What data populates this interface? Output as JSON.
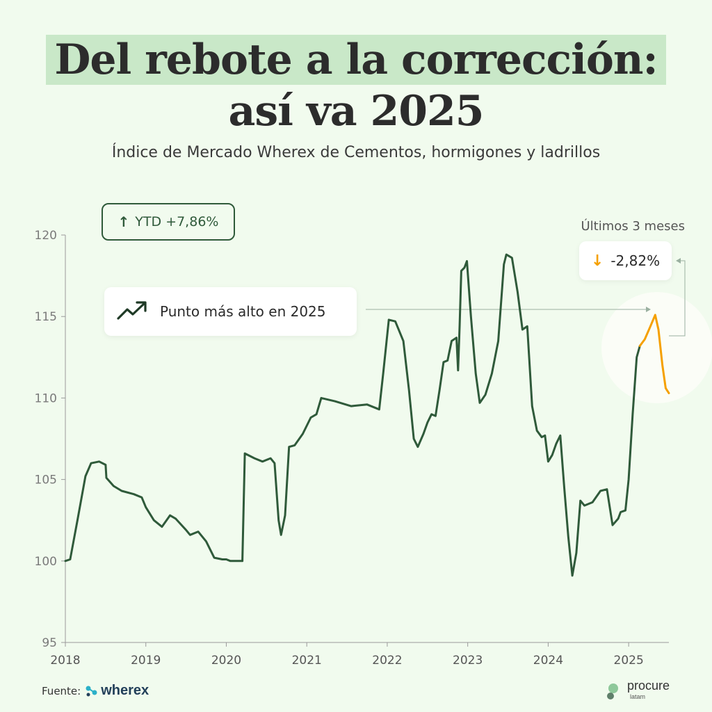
{
  "title": {
    "line1": "Del rebote a la corrección:",
    "line2": "así va 2025"
  },
  "subtitle": "Índice de Mercado Wherex de Cementos, hormigones y ladrillos",
  "ytd": {
    "arrow": "↑",
    "label": "YTD +7,86%"
  },
  "peak": {
    "label": "Punto más alto en 2025"
  },
  "last3": {
    "title": "Últimos 3 meses",
    "arrow": "↓",
    "value": "-2,82%"
  },
  "source": {
    "label": "Fuente:",
    "brand": "wherex"
  },
  "publisher": {
    "brand": "procure",
    "sub": "latam"
  },
  "colors": {
    "main_line": "#2f5a3a",
    "recent_line": "#f5a000",
    "axis": "#9a9a9a",
    "highlight": "#c9e8c8"
  },
  "chart_data": {
    "type": "line",
    "xlim": [
      2018,
      2025.5
    ],
    "ylim": [
      95,
      120
    ],
    "x_ticks": [
      2018,
      2019,
      2020,
      2021,
      2022,
      2023,
      2024,
      2025
    ],
    "x_tick_labels": [
      "2018",
      "2019",
      "2020",
      "2021",
      "2022",
      "2023",
      "2024",
      "2025"
    ],
    "y_ticks": [
      95,
      100,
      105,
      110,
      115,
      120
    ],
    "y_tick_labels": [
      "95",
      "100",
      "105",
      "110",
      "115",
      "120"
    ],
    "grid": false,
    "series": [
      {
        "points": [
          [
            2018.0,
            100.0
          ],
          [
            2018.06,
            100.1
          ],
          [
            2018.15,
            102.5
          ],
          [
            2018.25,
            105.2
          ],
          [
            2018.32,
            106.0
          ],
          [
            2018.42,
            106.1
          ],
          [
            2018.5,
            105.9
          ],
          [
            2018.51,
            105.1
          ],
          [
            2018.6,
            104.6
          ],
          [
            2018.7,
            104.3
          ],
          [
            2018.85,
            104.1
          ],
          [
            2018.95,
            103.9
          ],
          [
            2019.0,
            103.3
          ],
          [
            2019.1,
            102.5
          ],
          [
            2019.2,
            102.1
          ],
          [
            2019.3,
            102.8
          ],
          [
            2019.37,
            102.6
          ],
          [
            2019.5,
            101.9
          ],
          [
            2019.55,
            101.6
          ],
          [
            2019.65,
            101.8
          ],
          [
            2019.75,
            101.2
          ],
          [
            2019.85,
            100.2
          ],
          [
            2019.95,
            100.1
          ],
          [
            2020.0,
            100.1
          ],
          [
            2020.05,
            100.0
          ],
          [
            2020.2,
            100.0
          ],
          [
            2020.23,
            106.6
          ],
          [
            2020.35,
            106.3
          ],
          [
            2020.45,
            106.1
          ],
          [
            2020.55,
            106.3
          ],
          [
            2020.6,
            106.0
          ],
          [
            2020.65,
            102.5
          ],
          [
            2020.68,
            101.6
          ],
          [
            2020.73,
            102.8
          ],
          [
            2020.78,
            107.0
          ],
          [
            2020.85,
            107.1
          ],
          [
            2020.95,
            107.8
          ],
          [
            2021.05,
            108.8
          ],
          [
            2021.12,
            109.0
          ],
          [
            2021.18,
            110.0
          ],
          [
            2021.35,
            109.8
          ],
          [
            2021.55,
            109.5
          ],
          [
            2021.75,
            109.6
          ],
          [
            2021.9,
            109.3
          ],
          [
            2021.95,
            111.5
          ],
          [
            2022.02,
            114.8
          ],
          [
            2022.1,
            114.7
          ],
          [
            2022.2,
            113.5
          ],
          [
            2022.27,
            110.5
          ],
          [
            2022.33,
            107.5
          ],
          [
            2022.38,
            107.0
          ],
          [
            2022.45,
            107.8
          ],
          [
            2022.5,
            108.5
          ],
          [
            2022.55,
            109.0
          ],
          [
            2022.6,
            108.9
          ],
          [
            2022.65,
            110.5
          ],
          [
            2022.7,
            112.2
          ],
          [
            2022.75,
            112.3
          ],
          [
            2022.8,
            113.5
          ],
          [
            2022.86,
            113.7
          ],
          [
            2022.88,
            111.7
          ],
          [
            2022.9,
            114.5
          ],
          [
            2022.92,
            117.8
          ],
          [
            2022.96,
            118.0
          ],
          [
            2022.99,
            118.4
          ],
          [
            2023.04,
            115.0
          ],
          [
            2023.1,
            111.5
          ],
          [
            2023.15,
            109.7
          ],
          [
            2023.22,
            110.2
          ],
          [
            2023.3,
            111.5
          ],
          [
            2023.38,
            113.5
          ],
          [
            2023.45,
            118.2
          ],
          [
            2023.48,
            118.8
          ],
          [
            2023.55,
            118.6
          ],
          [
            2023.62,
            116.5
          ],
          [
            2023.68,
            114.2
          ],
          [
            2023.74,
            114.4
          ],
          [
            2023.8,
            109.5
          ],
          [
            2023.86,
            108.0
          ],
          [
            2023.92,
            107.6
          ],
          [
            2023.96,
            107.7
          ],
          [
            2024.0,
            106.1
          ],
          [
            2024.05,
            106.5
          ],
          [
            2024.1,
            107.2
          ],
          [
            2024.15,
            107.7
          ],
          [
            2024.2,
            104.5
          ],
          [
            2024.25,
            101.5
          ],
          [
            2024.3,
            99.1
          ],
          [
            2024.35,
            100.5
          ],
          [
            2024.4,
            103.7
          ],
          [
            2024.45,
            103.4
          ],
          [
            2024.55,
            103.6
          ],
          [
            2024.65,
            104.3
          ],
          [
            2024.73,
            104.4
          ],
          [
            2024.8,
            102.2
          ],
          [
            2024.87,
            102.6
          ],
          [
            2024.9,
            103.0
          ],
          [
            2024.96,
            103.1
          ],
          [
            2025.0,
            105.0
          ],
          [
            2025.05,
            109.0
          ],
          [
            2025.1,
            112.5
          ],
          [
            2025.14,
            113.2
          ]
        ]
      },
      {
        "points": [
          [
            2025.14,
            113.2
          ],
          [
            2025.2,
            113.6
          ],
          [
            2025.27,
            114.4
          ],
          [
            2025.33,
            115.1
          ],
          [
            2025.37,
            114.2
          ],
          [
            2025.42,
            112.0
          ],
          [
            2025.46,
            110.6
          ],
          [
            2025.5,
            110.3
          ]
        ]
      }
    ]
  }
}
